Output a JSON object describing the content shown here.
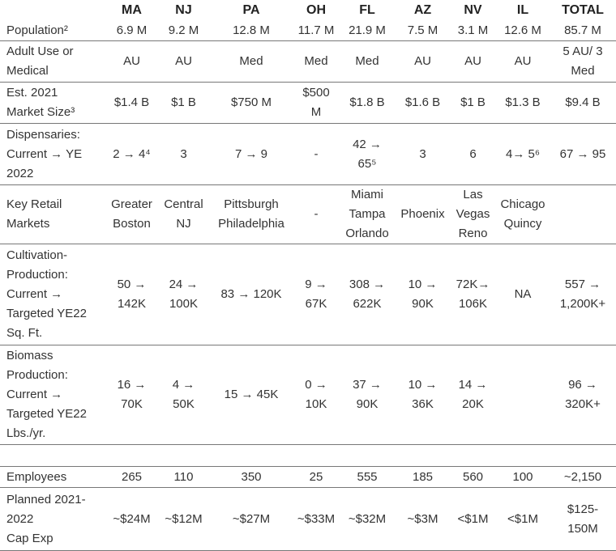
{
  "table": {
    "header": [
      "MA",
      "NJ",
      "PA",
      "OH",
      "FL",
      "AZ",
      "NV",
      "IL",
      "TOTAL"
    ],
    "rows": [
      {
        "label": "Population²",
        "cells": [
          "6.9 M",
          "9.2 M",
          "12.8 M",
          "11.7 M",
          "21.9 M",
          "7.5 M",
          "3.1 M",
          "12.6 M",
          "85.7 M"
        ]
      },
      {
        "label": "Adult Use or\nMedical",
        "cells": [
          "AU",
          "AU",
          "Med",
          "Med",
          "Med",
          "AU",
          "AU",
          "AU",
          "5 AU/ 3\nMed"
        ]
      },
      {
        "label": "Est. 2021\nMarket Size³",
        "cells": [
          "$1.4 B",
          "$1 B",
          "$750 M",
          "$500\nM",
          "$1.8 B",
          "$1.6 B",
          "$1 B",
          "$1.3 B",
          "$9.4 B"
        ]
      },
      {
        "label": "Dispensaries:\nCurrent → YE\n2022",
        "cells": [
          "2 → 4⁴",
          "3",
          "7 → 9",
          "-",
          "42 →\n65⁵",
          "3",
          "6",
          "4→ 5⁶",
          "67 → 95"
        ]
      },
      {
        "label": "Key Retail\nMarkets",
        "cells": [
          "Greater\nBoston",
          "Central\nNJ",
          "Pittsburgh\nPhiladelphia",
          "-",
          "Miami\nTampa\nOrlando",
          "Phoenix",
          "Las\nVegas\nReno",
          "Chicago\nQuincy",
          null
        ]
      },
      {
        "label": "Cultivation-\nProduction:\nCurrent →\nTargeted YE22\nSq. Ft.",
        "cells": [
          "50 →\n142K",
          "24 →\n100K",
          "83 → 120K",
          "9 →\n67K",
          "308 →\n622K",
          "10 →\n90K",
          "72K→\n106K",
          "NA",
          "557 →\n1,200K+"
        ]
      },
      {
        "label": "Biomass\nProduction:\nCurrent →\nTargeted YE22\nLbs./yr.",
        "cells": [
          "16 →\n70K",
          "4 →\n50K",
          "15 → 45K",
          "0 →\n10K",
          "37 →\n90K",
          "10 →\n36K",
          "14 →\n20K",
          null,
          "96 →\n320K+"
        ]
      },
      {
        "label": "Employees",
        "cells": [
          "265",
          "110",
          "350",
          "25",
          "555",
          "185",
          "560",
          "100",
          "~2,150"
        ]
      },
      {
        "label": "Planned 2021-\n2022\nCap Exp",
        "cells": [
          "~$24M",
          "~$12M",
          "~$27M",
          "~$33M",
          "~$32M",
          "~$3M",
          "<$1M",
          "<$1M",
          "$125-\n150M"
        ]
      }
    ]
  }
}
